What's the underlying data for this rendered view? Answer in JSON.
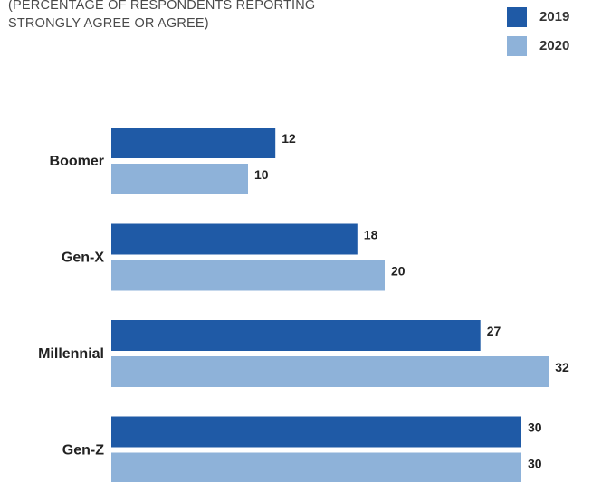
{
  "subtitle_lines": [
    "(PERCENTAGE OF RESPONDENTS REPORTING",
    "STRONGLY AGREE OR AGREE)"
  ],
  "colors": {
    "series_2019": "#1f5aa6",
    "series_2020": "#8eb2d9"
  },
  "chart_data": {
    "type": "bar",
    "orientation": "horizontal",
    "categories": [
      "Boomer",
      "Gen-X",
      "Millennial",
      "Gen-Z"
    ],
    "series": [
      {
        "name": "2019",
        "values": [
          12,
          18,
          27,
          30
        ]
      },
      {
        "name": "2020",
        "values": [
          10,
          20,
          32,
          30
        ]
      }
    ],
    "legend": "top-right",
    "grid": false,
    "xlim": [
      0,
      32
    ]
  }
}
